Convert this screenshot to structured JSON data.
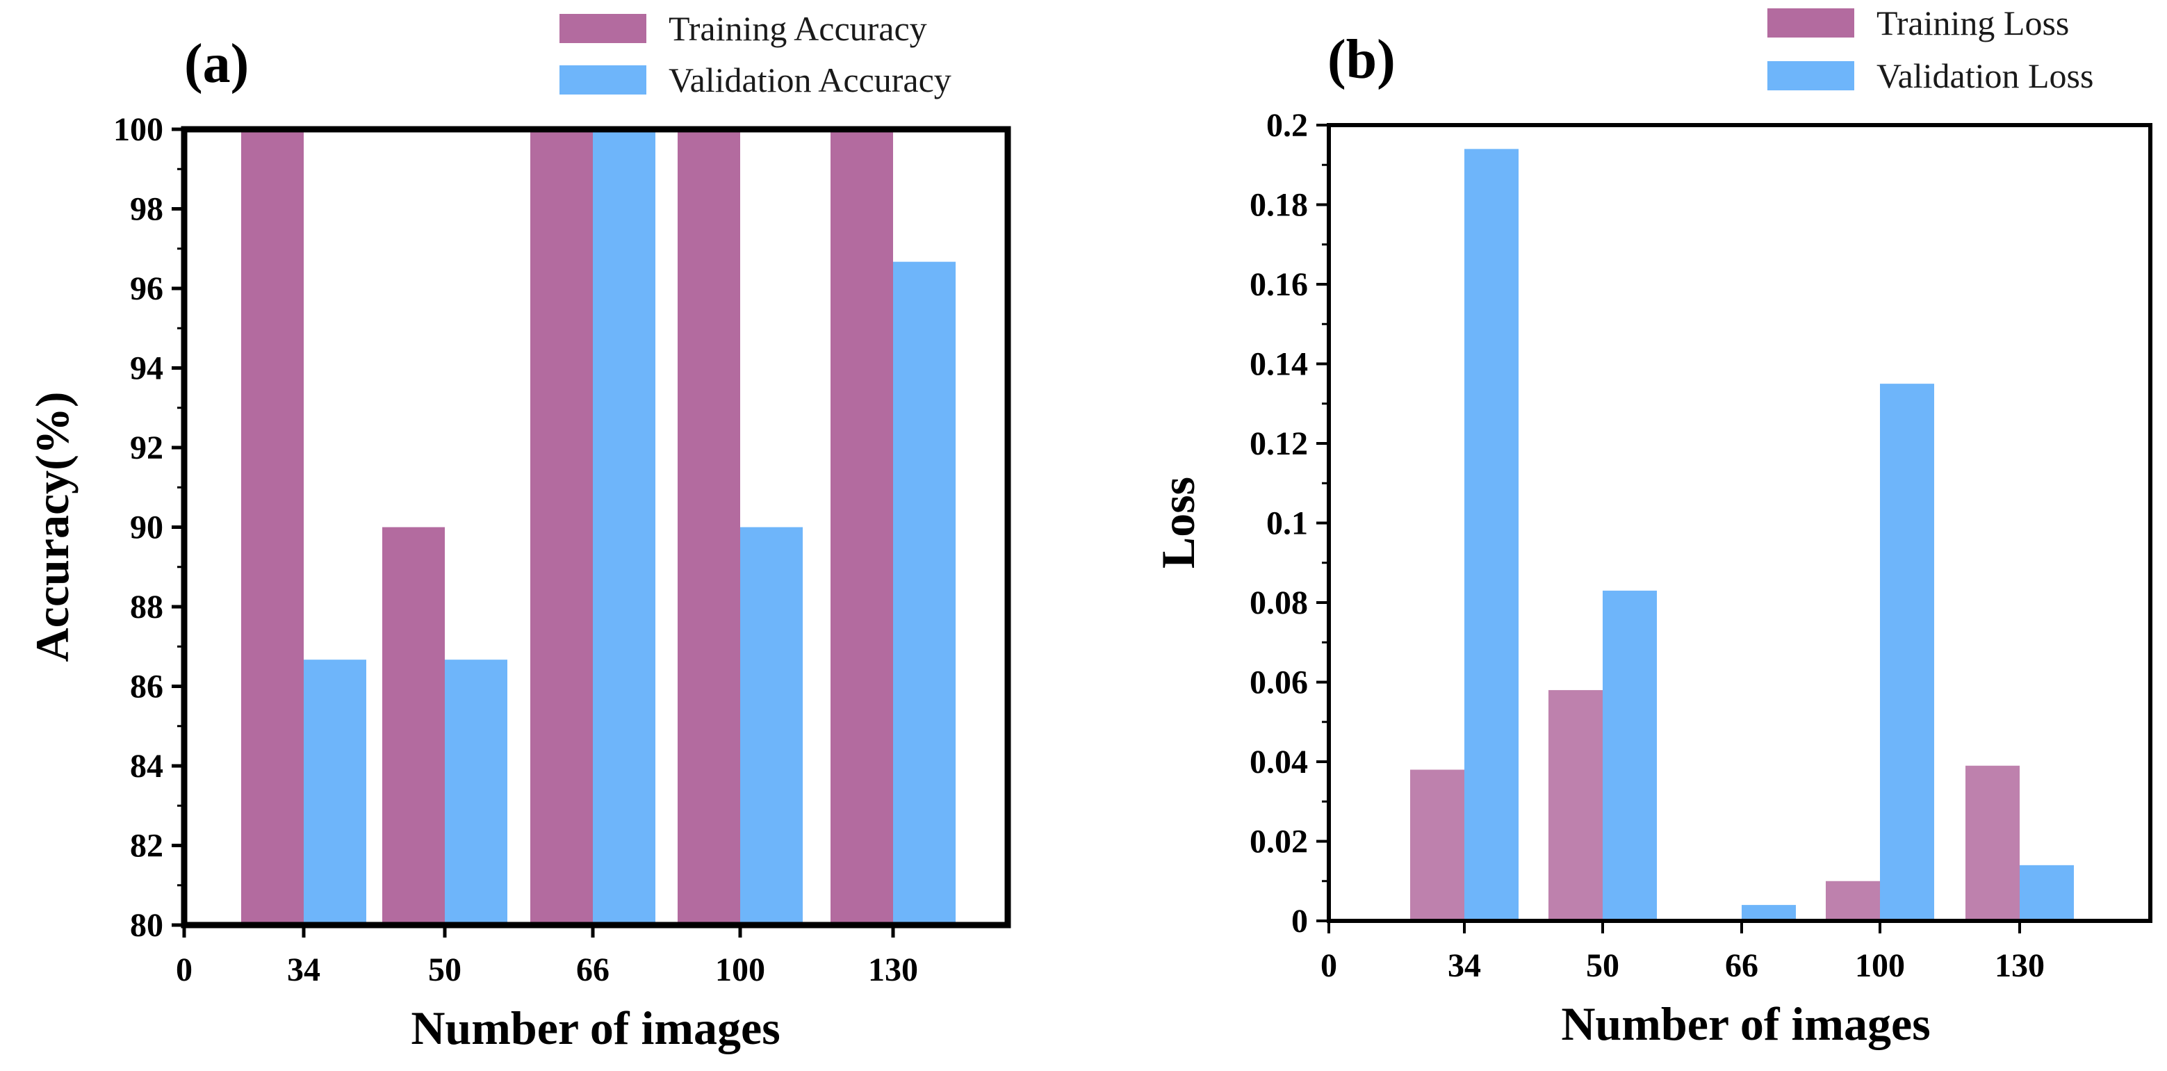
{
  "colors": {
    "training": "#b36b9f",
    "validation": "#6eb5fa",
    "axis": "#000000"
  },
  "chart_data": [
    {
      "type": "bar",
      "panel_label": "(a)",
      "title": "",
      "xlabel": "Number of images",
      "ylabel": "Accuracy(%)",
      "categories": [
        "34",
        "50",
        "66",
        "100",
        "130"
      ],
      "x_zero_label": "0",
      "ylim": [
        80,
        100
      ],
      "yticks": [
        80,
        82,
        84,
        86,
        88,
        90,
        92,
        94,
        96,
        98,
        100
      ],
      "ytick_labels": [
        "80",
        "82",
        "84",
        "86",
        "88",
        "90",
        "92",
        "94",
        "96",
        "98",
        "100"
      ],
      "legend_position": "top-right, above plot",
      "grid": false,
      "series": [
        {
          "name": "Training Accuracy",
          "values": [
            100,
            90,
            100,
            100,
            100
          ]
        },
        {
          "name": "Validation Accuracy",
          "values": [
            86.67,
            86.67,
            100,
            90,
            96.67
          ]
        }
      ]
    },
    {
      "type": "bar",
      "panel_label": "(b)",
      "title": "",
      "xlabel": "Number of images",
      "ylabel": "Loss",
      "categories": [
        "34",
        "50",
        "66",
        "100",
        "130"
      ],
      "x_zero_label": "0",
      "ylim": [
        0,
        0.2
      ],
      "yticks": [
        0,
        0.02,
        0.04,
        0.06,
        0.08,
        0.1,
        0.12,
        0.14,
        0.16,
        0.18,
        0.2
      ],
      "ytick_labels": [
        "0",
        "0.02",
        "0.04",
        "0.06",
        "0.08",
        "0.1",
        "0.12",
        "0.14",
        "0.16",
        "0.18",
        "0.2"
      ],
      "legend_position": "top-right, above plot",
      "grid": false,
      "series": [
        {
          "name": "Training Loss",
          "values": [
            0.038,
            0.058,
            0.0,
            0.01,
            0.039
          ]
        },
        {
          "name": "Validation Loss",
          "values": [
            0.194,
            0.083,
            0.004,
            0.135,
            0.014
          ]
        }
      ]
    }
  ]
}
